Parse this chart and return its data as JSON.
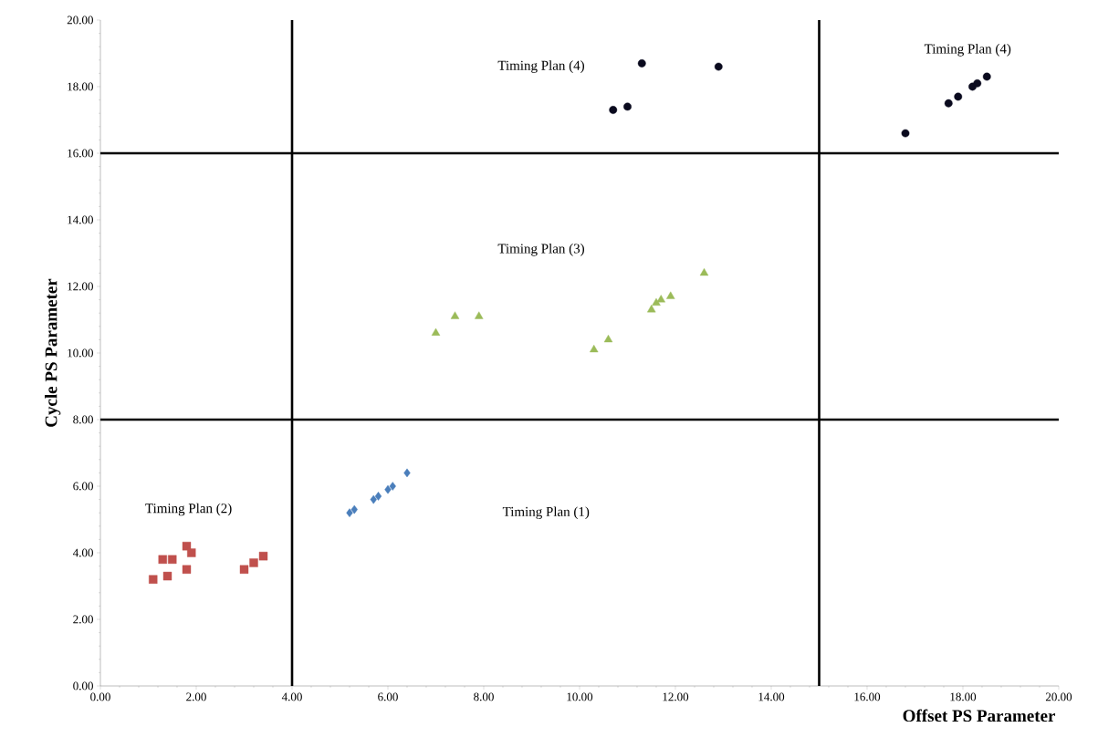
{
  "chart_data": {
    "type": "scatter",
    "xlabel": "Offset PS Parameter",
    "ylabel": "Cycle PS Parameter",
    "xlim": [
      0,
      20
    ],
    "ylim": [
      0,
      20
    ],
    "xticks": [
      {
        "value": 0,
        "label": "0.00"
      },
      {
        "value": 2,
        "label": "2.00"
      },
      {
        "value": 4,
        "label": "4.00"
      },
      {
        "value": 6,
        "label": "6.00"
      },
      {
        "value": 8,
        "label": "8.00"
      },
      {
        "value": 10,
        "label": "10.00"
      },
      {
        "value": 12,
        "label": "12.00"
      },
      {
        "value": 14,
        "label": "14.00"
      },
      {
        "value": 16,
        "label": "16.00"
      },
      {
        "value": 18,
        "label": "18.00"
      },
      {
        "value": 20,
        "label": "20.00"
      }
    ],
    "yticks": [
      {
        "value": 0,
        "label": "0.00"
      },
      {
        "value": 2,
        "label": "2.00"
      },
      {
        "value": 4,
        "label": "4.00"
      },
      {
        "value": 6,
        "label": "6.00"
      },
      {
        "value": 8,
        "label": "8.00"
      },
      {
        "value": 10,
        "label": "10.00"
      },
      {
        "value": 12,
        "label": "12.00"
      },
      {
        "value": 14,
        "label": "14.00"
      },
      {
        "value": 16,
        "label": "16.00"
      },
      {
        "value": 18,
        "label": "18.00"
      },
      {
        "value": 20,
        "label": "20.00"
      }
    ],
    "series": [
      {
        "color": "#4a7ebb",
        "marker": "diamond",
        "x": [
          5.2,
          5.3,
          5.7,
          5.8,
          6.0,
          6.1,
          6.4
        ],
        "values": [
          5.2,
          5.3,
          5.6,
          5.7,
          5.9,
          6.0,
          6.4
        ]
      },
      {
        "color": "#c0504d",
        "marker": "square",
        "x": [
          1.1,
          1.4,
          1.3,
          1.5,
          1.8,
          1.9,
          1.8,
          3.0,
          3.2,
          3.4
        ],
        "values": [
          3.2,
          3.3,
          3.8,
          3.8,
          4.2,
          4.0,
          3.5,
          3.5,
          3.7,
          3.9
        ]
      },
      {
        "color": "#9bbb59",
        "marker": "triangle",
        "x": [
          7.0,
          7.4,
          7.9,
          10.3,
          10.6,
          11.5,
          11.6,
          11.7,
          11.9,
          12.6
        ],
        "values": [
          10.6,
          11.1,
          11.1,
          10.1,
          10.4,
          11.3,
          11.5,
          11.6,
          11.7,
          12.4
        ]
      },
      {
        "color": "#0a0a1e",
        "marker": "circle",
        "x": [
          10.7,
          11.0,
          11.3,
          12.9,
          16.8,
          17.7,
          17.9,
          18.2,
          18.3,
          18.5
        ],
        "values": [
          17.3,
          17.4,
          18.7,
          18.6,
          16.6,
          17.5,
          17.7,
          18.0,
          18.1,
          18.3
        ]
      }
    ],
    "ref_lines": [
      {
        "axis": "x",
        "value": 4,
        "color": "#000000"
      },
      {
        "axis": "x",
        "value": 15,
        "color": "#000000"
      },
      {
        "axis": "y",
        "value": 8,
        "color": "#000000"
      },
      {
        "axis": "y",
        "value": 16,
        "color": "#000000"
      }
    ],
    "annotations": [
      "Timing Plan (4)",
      "Timing Plan (4)",
      "Timing Plan (3)",
      "Timing Plan (2)",
      "Timing Plan (1)"
    ]
  }
}
